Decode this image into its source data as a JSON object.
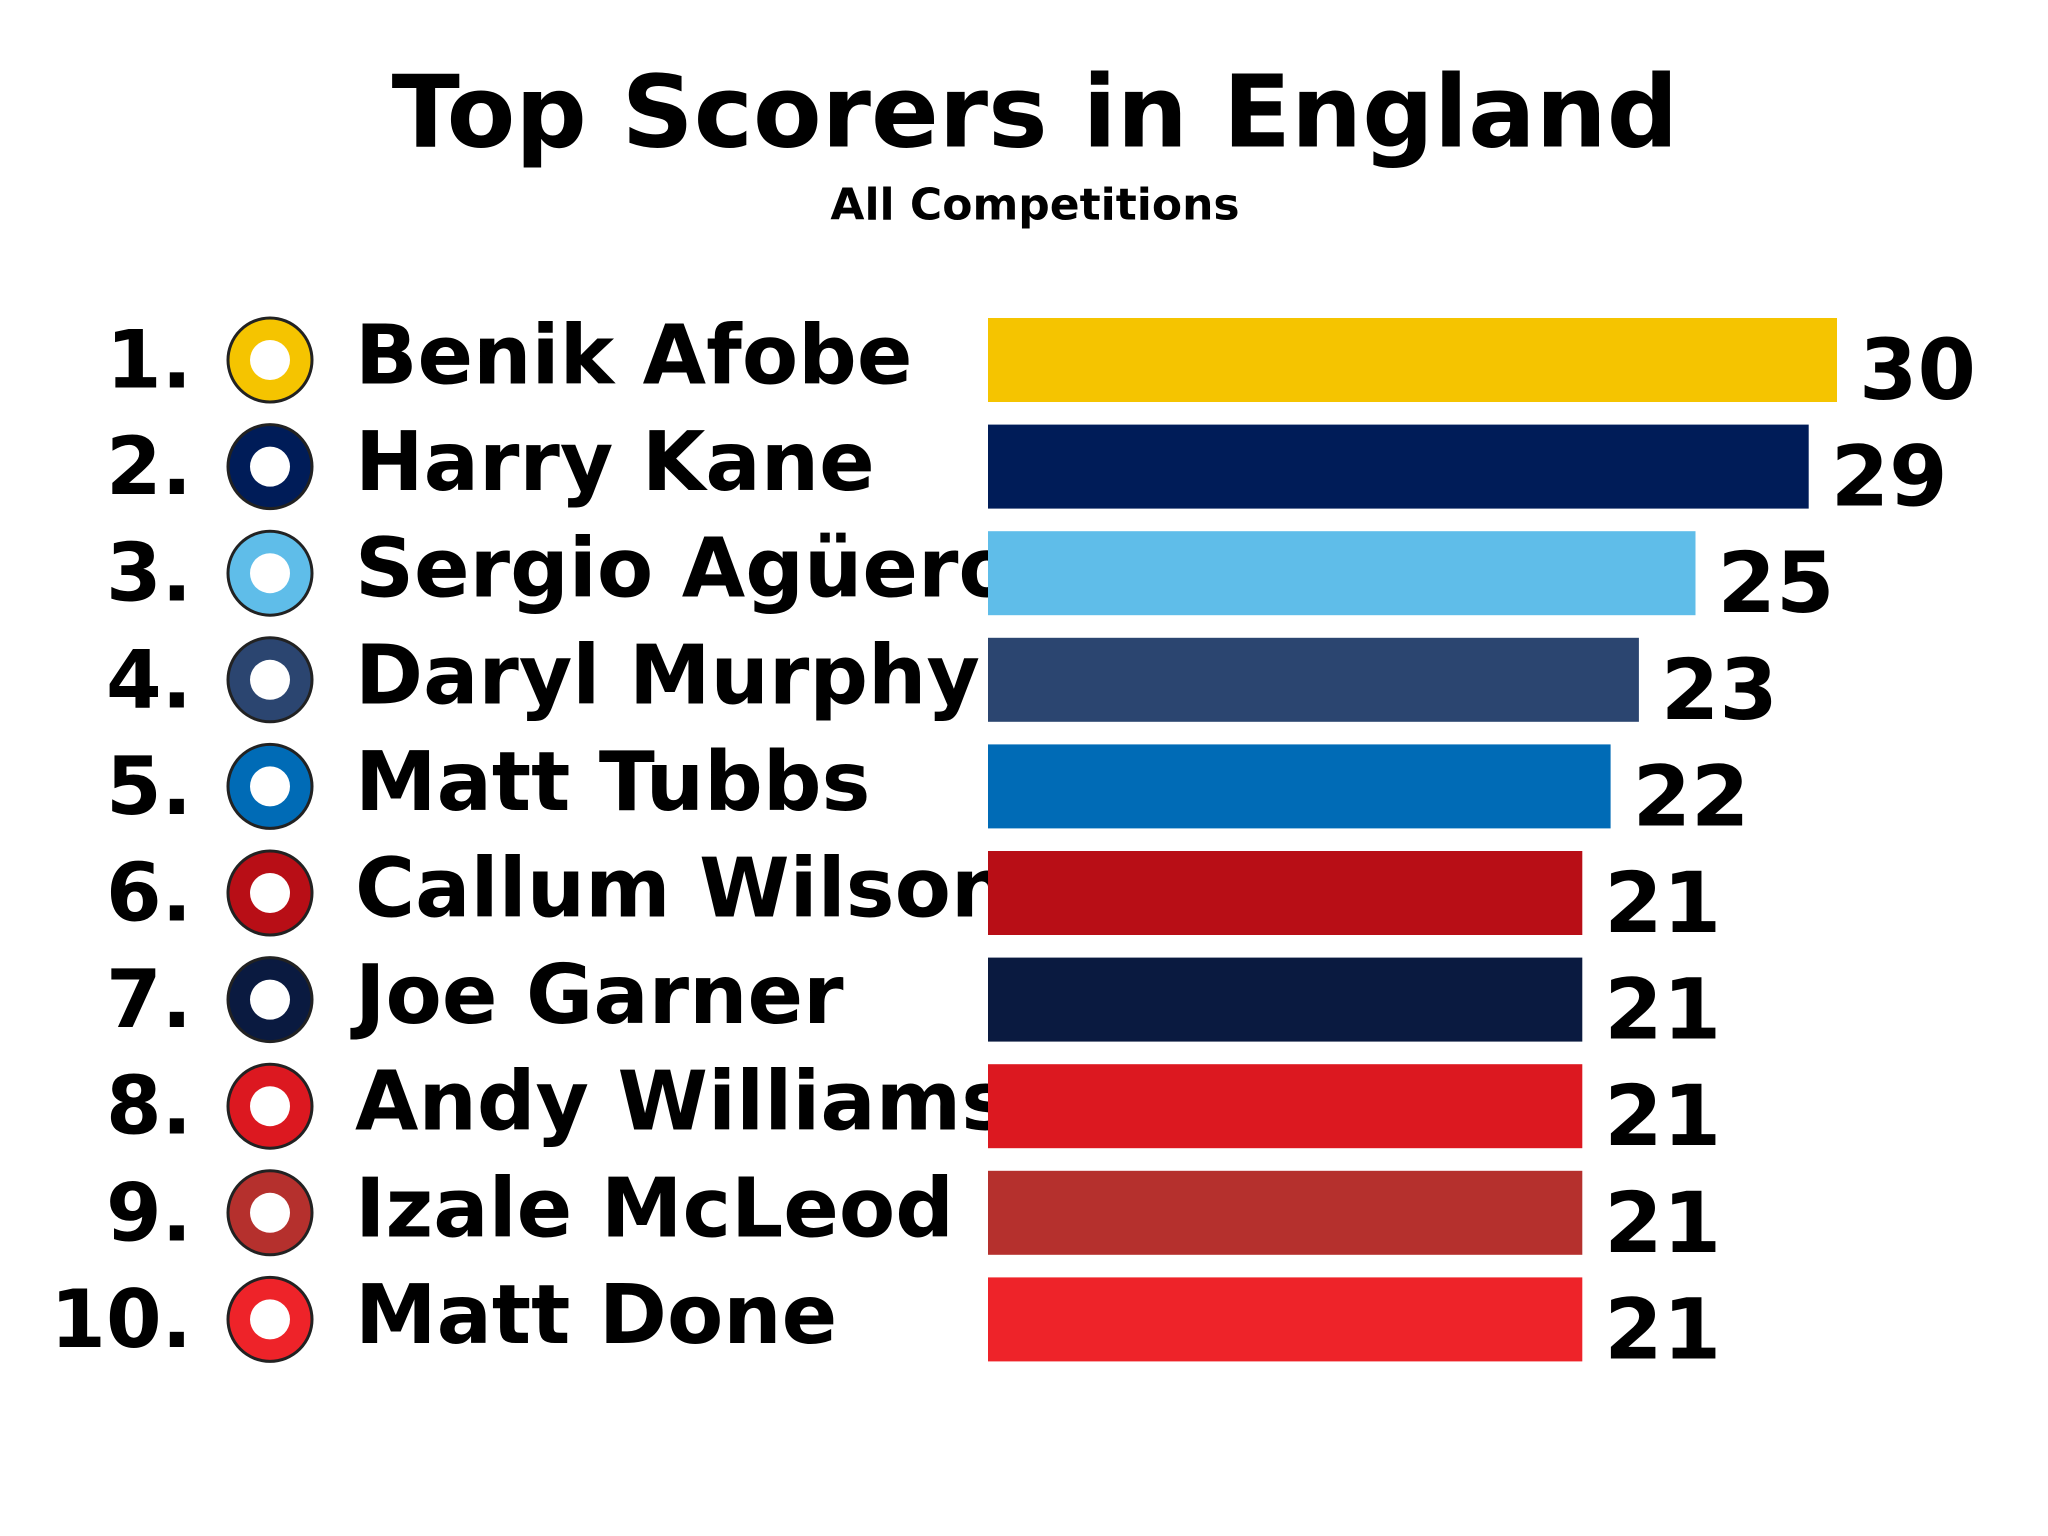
{
  "chart_data": {
    "type": "bar",
    "orientation": "horizontal",
    "title": "Top Scorers in England",
    "subtitle": "All Competitions",
    "ranks": [
      "1.",
      "2.",
      "3.",
      "4.",
      "5.",
      "6.",
      "7.",
      "8.",
      "9.",
      "10."
    ],
    "categories": [
      "Benik Afobe",
      "Harry Kane",
      "Sergio Agüero",
      "Daryl Murphy",
      "Matt Tubbs",
      "Callum Wilson",
      "Joe Garner",
      "Andy Williams",
      "Izale McLeod",
      "Matt Done"
    ],
    "values": [
      30,
      29,
      25,
      23,
      22,
      21,
      21,
      21,
      21,
      21
    ],
    "colors": [
      "#f5c400",
      "#001c58",
      "#5fbde9",
      "#2b4570",
      "#006bb6",
      "#b80e16",
      "#0a1a40",
      "#dc1820",
      "#b5302d",
      "#ee2329"
    ]
  }
}
